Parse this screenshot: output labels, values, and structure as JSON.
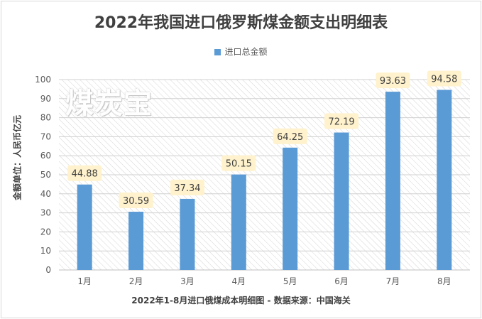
{
  "chart_data": {
    "type": "bar",
    "title": "2022年我国进口俄罗斯煤金额支出明细表",
    "legend": [
      "进口总金额"
    ],
    "legend_position": "top",
    "ylabel": "金额单位：人民币亿元",
    "xlabel": "2022年1-8月进口俄煤成本明细图 - 数据来源：中国海关",
    "categories": [
      "1月",
      "2月",
      "3月",
      "4月",
      "5月",
      "6月",
      "7月",
      "8月"
    ],
    "series": [
      {
        "name": "进口总金额",
        "values": [
          44.88,
          30.59,
          37.34,
          50.15,
          64.25,
          72.19,
          93.63,
          94.58
        ]
      }
    ],
    "value_labels": [
      "44.88",
      "30.59",
      "37.34",
      "50.15",
      "64.25",
      "72.19",
      "93.63",
      "94.58"
    ],
    "ylim": [
      0,
      100
    ],
    "yticks": [
      0,
      10,
      20,
      30,
      40,
      50,
      60,
      70,
      80,
      90,
      100
    ],
    "grid": true,
    "bar_color": "#5b9bd5",
    "label_bg_color": "#fff2cc"
  },
  "watermark": "煤炭宝"
}
